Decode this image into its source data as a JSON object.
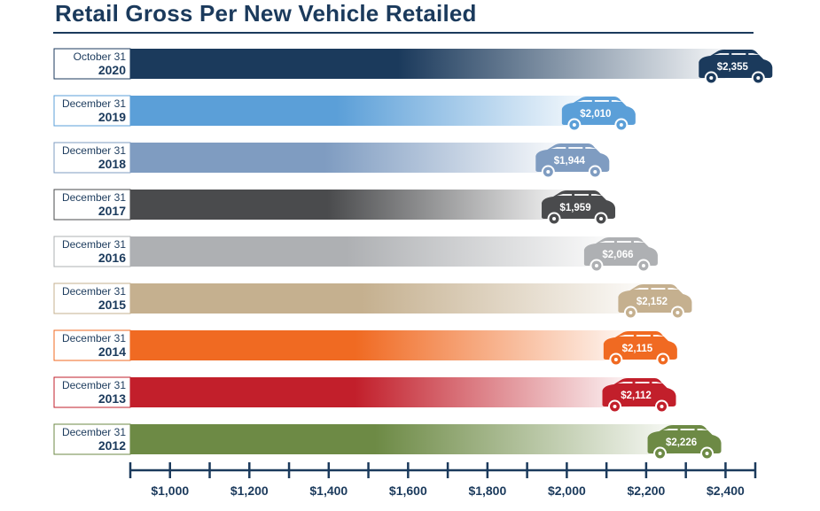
{
  "chart_data": {
    "type": "bar",
    "orientation": "horizontal",
    "title": "Retail Gross Per New Vehicle Retailed",
    "xlabel": "",
    "ylabel": "",
    "xlim": [
      900,
      2475
    ],
    "xticks": [
      1000,
      1200,
      1400,
      1600,
      1800,
      2000,
      2200,
      2400
    ],
    "xtick_labels": [
      "$1,000",
      "$1,200",
      "$1,400",
      "$1,600",
      "$1,800",
      "$2,000",
      "$2,200",
      "$2,400"
    ],
    "minor_tick_step": 100,
    "grid": false,
    "legend": "none",
    "categories": [
      {
        "period": "October 31",
        "year": "2020"
      },
      {
        "period": "December 31",
        "year": "2019"
      },
      {
        "period": "December 31",
        "year": "2018"
      },
      {
        "period": "December 31",
        "year": "2017"
      },
      {
        "period": "December 31",
        "year": "2016"
      },
      {
        "period": "December 31",
        "year": "2015"
      },
      {
        "period": "December 31",
        "year": "2014"
      },
      {
        "period": "December 31",
        "year": "2013"
      },
      {
        "period": "December 31",
        "year": "2012"
      }
    ],
    "values": [
      2355,
      2010,
      1944,
      1959,
      2066,
      2152,
      2115,
      2112,
      2226
    ],
    "value_labels": [
      "$2,355",
      "$2,010",
      "$1,944",
      "$1,959",
      "$2,066",
      "$2,152",
      "$2,115",
      "$2,112",
      "$2,226"
    ],
    "colors": [
      "#1b3a5c",
      "#5b9fd8",
      "#7f9cc1",
      "#4a4b4d",
      "#aeb0b3",
      "#c5b08f",
      "#f06a22",
      "#c21f2b",
      "#6d8a45"
    ]
  }
}
